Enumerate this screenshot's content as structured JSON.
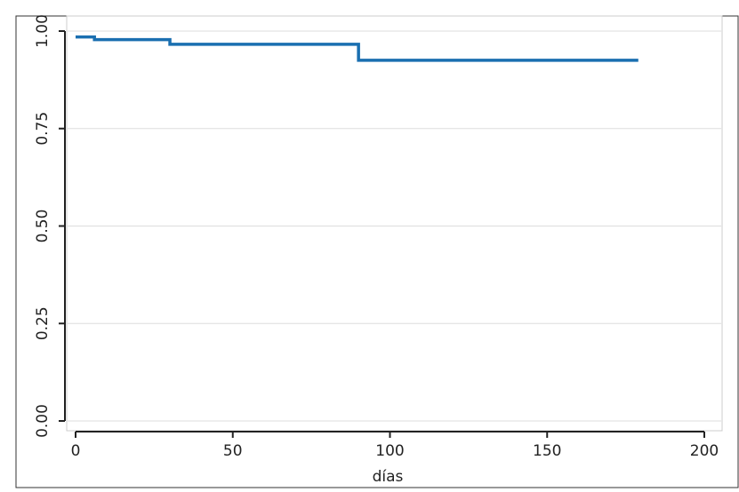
{
  "chart_data": {
    "type": "step",
    "x_label": "días",
    "x": [
      0,
      6,
      30,
      90,
      179
    ],
    "series": [
      {
        "color": "#1a6fb0",
        "values": [
          0.985,
          0.978,
          0.966,
          0.925,
          0.925
        ]
      }
    ],
    "xlim": [
      0,
      200
    ],
    "xticks": [
      0,
      50,
      100,
      150,
      200
    ],
    "ylim": [
      0,
      1
    ],
    "yticks": [
      {
        "value": 0,
        "label": "0.00"
      },
      {
        "value": 0.25,
        "label": "0.25"
      },
      {
        "value": 0.5,
        "label": "0.50"
      },
      {
        "value": 0.75,
        "label": "0.75"
      },
      {
        "value": 1,
        "label": "1.00"
      }
    ],
    "grid": true
  }
}
